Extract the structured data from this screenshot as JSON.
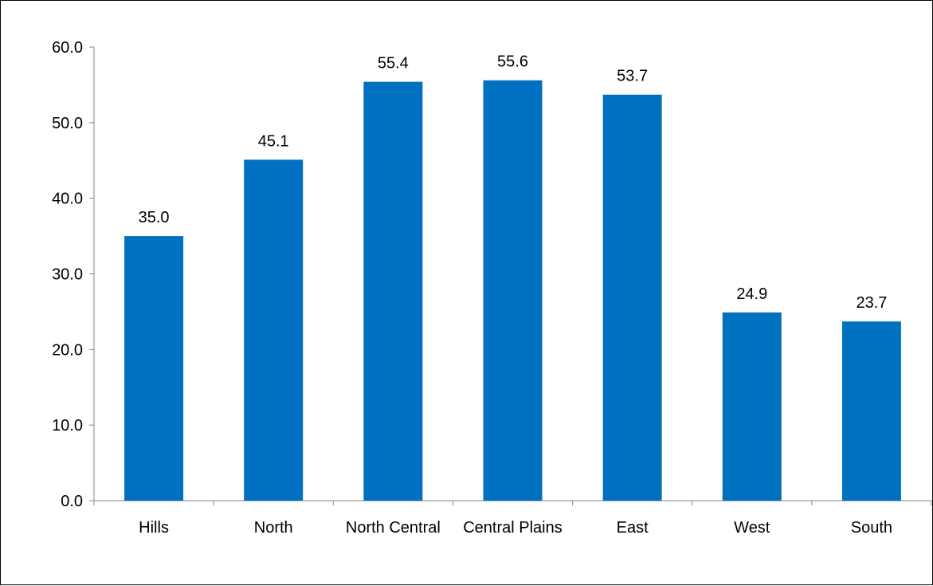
{
  "chart_data": {
    "type": "bar",
    "title": "",
    "xlabel": "",
    "ylabel": "",
    "categories": [
      "Hills",
      "North",
      "North Central",
      "Central Plains",
      "East",
      "West",
      "South"
    ],
    "values": [
      35.0,
      45.1,
      55.4,
      55.6,
      53.7,
      24.9,
      23.7
    ],
    "data_labels": [
      "35.0",
      "45.1",
      "55.4",
      "55.6",
      "53.7",
      "24.9",
      "23.7"
    ],
    "ylim": [
      0,
      60
    ],
    "yticks": [
      0,
      10,
      20,
      30,
      40,
      50,
      60
    ],
    "ytick_labels": [
      "0.0",
      "10.0",
      "20.0",
      "30.0",
      "40.0",
      "50.0",
      "60.0"
    ],
    "grid": false,
    "legend": "none",
    "bar_color": "#0070C0"
  }
}
